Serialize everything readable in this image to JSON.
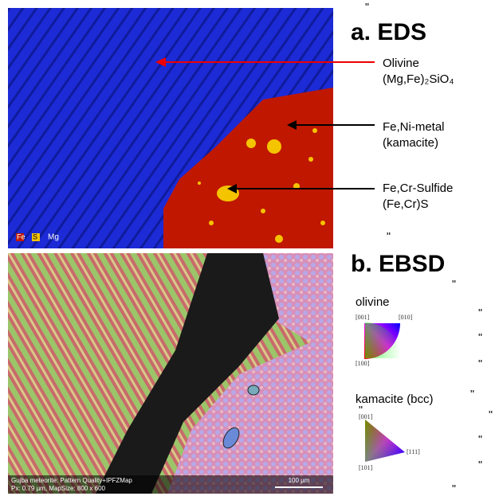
{
  "panel_a": {
    "title": "a. EDS",
    "legend": [
      "Fe",
      "S",
      "Mg"
    ],
    "labels": [
      {
        "name": "Olivine",
        "formula": "(Mg,Fe)₂SiO₄"
      },
      {
        "name": "Fe,Ni-metal",
        "formula": "(kamacite)"
      },
      {
        "name": "Fe,Cr-Sulfide",
        "formula": "(Fe,Cr)S"
      }
    ]
  },
  "panel_b": {
    "title": "b. EBSD",
    "caption": [
      "Gujba meteorite: Pattern Quality+IPFZMap",
      "Px: 0.79 µm, MapSize: 800 x 600"
    ],
    "scale_bar": "100 µm",
    "keys": [
      {
        "name": "olivine",
        "poles": [
          "[001]",
          "[010]",
          "[100]"
        ]
      },
      {
        "name": "kamacite (bcc)",
        "poles": [
          "[001]",
          "[111]",
          "[101]"
        ]
      }
    ]
  },
  "marks": [
    "\"",
    "\"",
    "\"",
    "\"",
    "\"",
    "\"",
    "\"",
    "\"",
    "\"",
    "\"",
    "\"",
    "\""
  ]
}
